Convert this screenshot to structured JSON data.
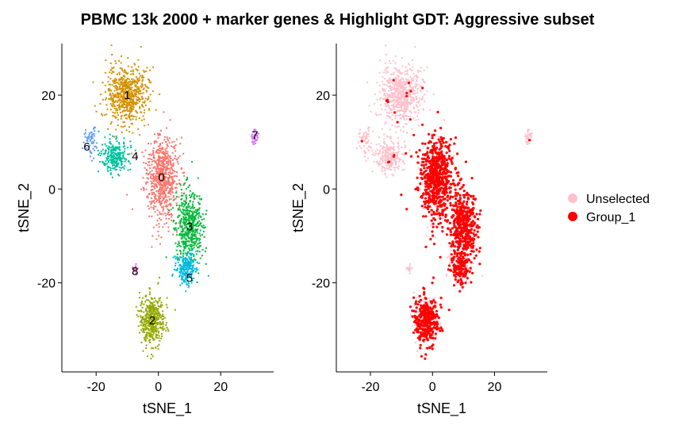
{
  "title": "PBMC 13k 2000 + marker genes & Highlight GDT: Aggressive subset",
  "chart_data": [
    {
      "type": "scatter",
      "panel": "clusters",
      "xlabel": "tSNE_1",
      "ylabel": "tSNE_2",
      "xlim": [
        -31,
        37
      ],
      "ylim": [
        -39,
        31
      ],
      "xticks": [
        -20,
        0,
        20
      ],
      "yticks": [
        20,
        0,
        -20
      ],
      "x_tick_labels": [
        "-20",
        "0",
        "20"
      ],
      "y_tick_labels": [
        "20",
        "0",
        "-20"
      ],
      "clusters": [
        {
          "label": "0",
          "color": "#F8766D",
          "center": [
            1,
            2.5
          ],
          "spread": [
            5,
            8
          ],
          "n": 700,
          "label_pos": [
            1,
            2.5
          ]
        },
        {
          "label": "1",
          "color": "#D39200",
          "center": [
            -10,
            20
          ],
          "spread": [
            6,
            5.5
          ],
          "n": 650,
          "label_pos": [
            -10,
            20
          ]
        },
        {
          "label": "2",
          "color": "#93AA00",
          "center": [
            -2,
            -28
          ],
          "spread": [
            3.5,
            5
          ],
          "n": 450,
          "label_pos": [
            -2,
            -28
          ]
        },
        {
          "label": "3",
          "color": "#00BA38",
          "center": [
            10,
            -8
          ],
          "spread": [
            4,
            7
          ],
          "n": 500,
          "label_pos": [
            10,
            -8
          ]
        },
        {
          "label": "4",
          "color": "#00C19F",
          "center": [
            -14,
            7
          ],
          "spread": [
            4,
            3
          ],
          "n": 250,
          "label_pos": [
            -7.5,
            7
          ]
        },
        {
          "label": "5",
          "color": "#00B9E3",
          "center": [
            9,
            -17
          ],
          "spread": [
            3,
            3
          ],
          "n": 220,
          "label_pos": [
            10,
            -19
          ]
        },
        {
          "label": "6",
          "color": "#619CFF",
          "center": [
            -22,
            10
          ],
          "spread": [
            2,
            3
          ],
          "n": 60,
          "label_pos": [
            -23,
            9
          ]
        },
        {
          "label": "7",
          "color": "#DB72FB",
          "center": [
            31,
            11
          ],
          "spread": [
            1,
            1.2
          ],
          "n": 40,
          "label_pos": [
            31,
            11.5
          ]
        },
        {
          "label": "8",
          "color": "#FF61C3",
          "center": [
            -7.5,
            -17
          ],
          "spread": [
            0.8,
            0.8
          ],
          "n": 15,
          "label_pos": [
            -7.5,
            -17.5
          ]
        }
      ]
    },
    {
      "type": "scatter",
      "panel": "highlight",
      "xlabel": "tSNE_1",
      "ylabel": "tSNE_2",
      "xlim": [
        -31,
        37
      ],
      "ylim": [
        -39,
        31
      ],
      "xticks": [
        -20,
        0,
        20
      ],
      "yticks": [
        20,
        0,
        -20
      ],
      "x_tick_labels": [
        "-20",
        "0",
        "20"
      ],
      "y_tick_labels": [
        "20",
        "0",
        "-20"
      ],
      "series": [
        {
          "name": "Unselected",
          "color": "#FFC0CB"
        },
        {
          "name": "Group_1",
          "color": "#FF0000"
        }
      ],
      "legend": "right"
    }
  ]
}
